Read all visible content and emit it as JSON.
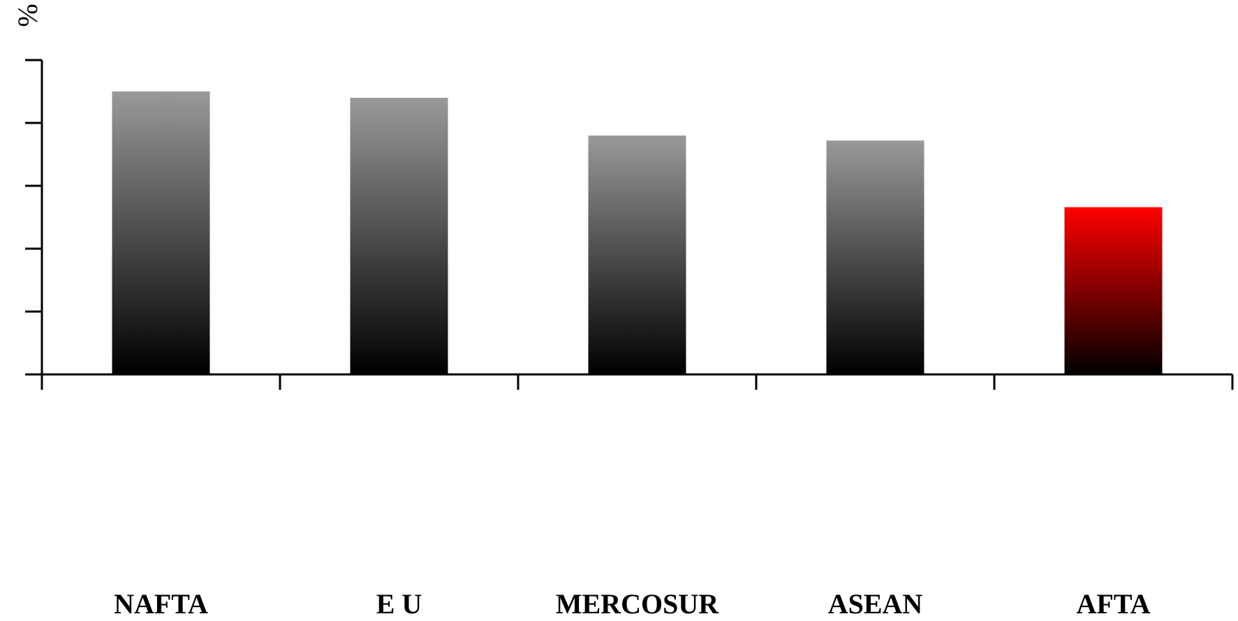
{
  "chart_data": {
    "type": "bar",
    "title": "",
    "xlabel": "",
    "ylabel": "%",
    "categories": [
      "NAFTA",
      "E U",
      "MERCOSUR",
      "ASEAN",
      "AFTA"
    ],
    "values": [
      45,
      44,
      38,
      37.2,
      26.6
    ],
    "ylim": [
      0,
      50
    ],
    "grid": false,
    "legend": "none",
    "colors": {
      "bar_top": "#999999",
      "bar_bottom": "#000000",
      "highlight_top": "#ff0000",
      "highlight_bottom": "#000000",
      "axis": "#000000"
    },
    "highlight_category": "AFTA"
  }
}
